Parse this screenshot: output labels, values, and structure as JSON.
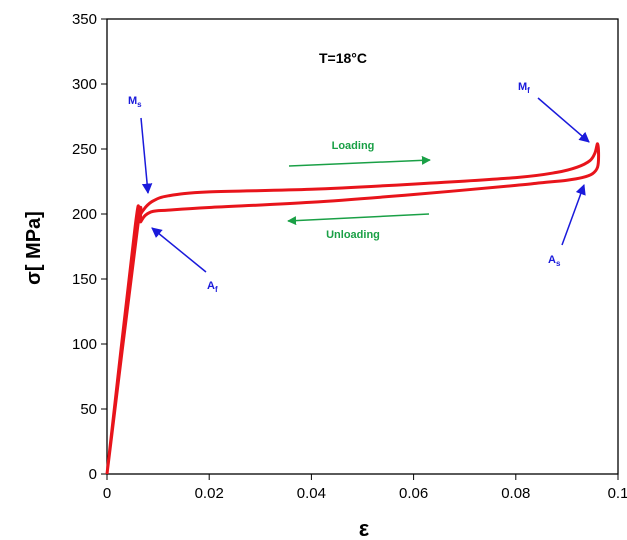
{
  "chart_data": {
    "type": "line",
    "xlabel": "ε",
    "ylabel": "σ[ MPa]",
    "xlim": [
      0,
      0.1
    ],
    "ylim": [
      0,
      350
    ],
    "x_ticks": [
      0,
      0.02,
      0.04,
      0.06,
      0.08,
      0.1
    ],
    "x_tick_labels": [
      "0",
      "0.02",
      "0.04",
      "0.06",
      "0.08",
      "0.1"
    ],
    "y_ticks": [
      0,
      50,
      100,
      150,
      200,
      250,
      300,
      350
    ],
    "y_tick_labels": [
      "0",
      "50",
      "100",
      "150",
      "200",
      "250",
      "300",
      "350"
    ],
    "grid": false,
    "series": [
      {
        "color": "#e8141b",
        "x": [
          0,
          0.0055,
          0.0063,
          0.0075,
          0.009,
          0.012,
          0.02,
          0.04,
          0.06,
          0.08,
          0.088,
          0.092,
          0.0945,
          0.0955,
          0.096,
          0.0962,
          0.096,
          0.095,
          0.093,
          0.09,
          0.085,
          0.08,
          0.06,
          0.04,
          0.02,
          0.012,
          0.009,
          0.0075,
          0.0066,
          0.006,
          0
        ],
        "y": [
          0,
          190,
          198,
          205,
          210,
          214,
          217,
          219,
          223,
          228,
          232,
          236,
          241,
          247,
          254,
          245,
          236,
          231,
          228,
          226,
          224,
          222,
          215,
          209,
          205,
          203,
          202,
          199,
          194,
          190,
          0
        ]
      }
    ],
    "annotations": {
      "temperature": "T=18°C",
      "loading": "Loading",
      "unloading": "Unloading",
      "ms": {
        "base": "M",
        "sub": "s"
      },
      "mf": {
        "base": "M",
        "sub": "f"
      },
      "af": {
        "base": "A",
        "sub": "f"
      },
      "as": {
        "base": "A",
        "sub": "s"
      }
    },
    "colors": {
      "curve": "#e8141b",
      "point_labels": "#1a1adb",
      "arrows_green": "#1aa046",
      "text_green": "#1aa046"
    }
  }
}
